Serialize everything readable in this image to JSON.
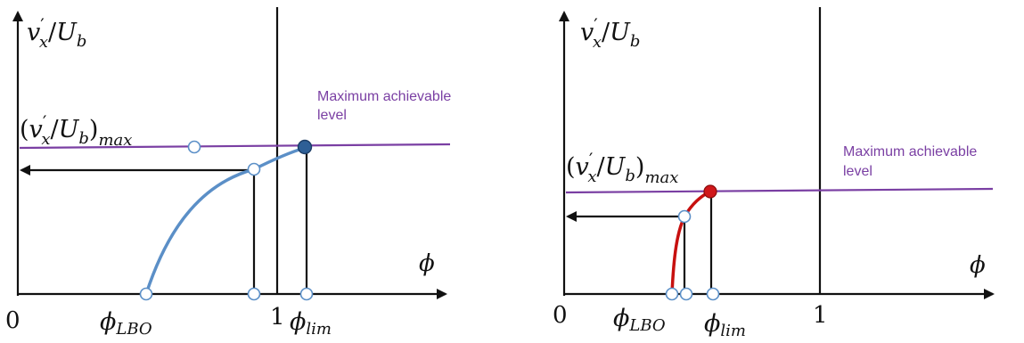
{
  "colors": {
    "axis": "#111111",
    "max_level_line": "#7a3fa3",
    "max_level_text": "#7a3fa3",
    "left_curve": "#5b8fc7",
    "left_point": "#2e5f96",
    "right_curve": "#c7100f",
    "right_point": "#d0171a"
  },
  "left_panel": {
    "y_axis_label": {
      "base": "v",
      "prime": "′",
      "sub": "x",
      "slash": "/",
      "U": "U",
      "U_sub": "b"
    },
    "max_label": {
      "open": "(",
      "base": "v",
      "prime": "′",
      "sub": "x",
      "slash": "/",
      "U": "U",
      "U_sub": "b",
      "close": ")",
      "outer_sub": "max"
    },
    "x_axis_label": "ϕ",
    "origin_label": "0",
    "one_label": "1",
    "lbo_label": {
      "base": "ϕ",
      "sub": "LBO"
    },
    "lim_label": {
      "base": "ϕ",
      "sub": "lim"
    },
    "annotation": {
      "line1": "Maximum achievable",
      "line2": "level"
    },
    "curve_icon": "blue-curve",
    "limit_point_icon": "filled-circle-marker"
  },
  "right_panel": {
    "y_axis_label": {
      "base": "v",
      "prime": "′",
      "sub": "x",
      "slash": "/",
      "U": "U",
      "U_sub": "b"
    },
    "max_label": {
      "open": "(",
      "base": "v",
      "prime": "′",
      "sub": "x",
      "slash": "/",
      "U": "U",
      "U_sub": "b",
      "close": ")",
      "outer_sub": "max"
    },
    "x_axis_label": "ϕ",
    "origin_label": "0",
    "one_label": "1",
    "lbo_label": {
      "base": "ϕ",
      "sub": "LBO"
    },
    "lim_label": {
      "base": "ϕ",
      "sub": "lim"
    },
    "annotation": {
      "line1": "Maximum achievable",
      "line2": "level"
    },
    "curve_icon": "red-curve",
    "limit_point_icon": "filled-circle-marker"
  }
}
